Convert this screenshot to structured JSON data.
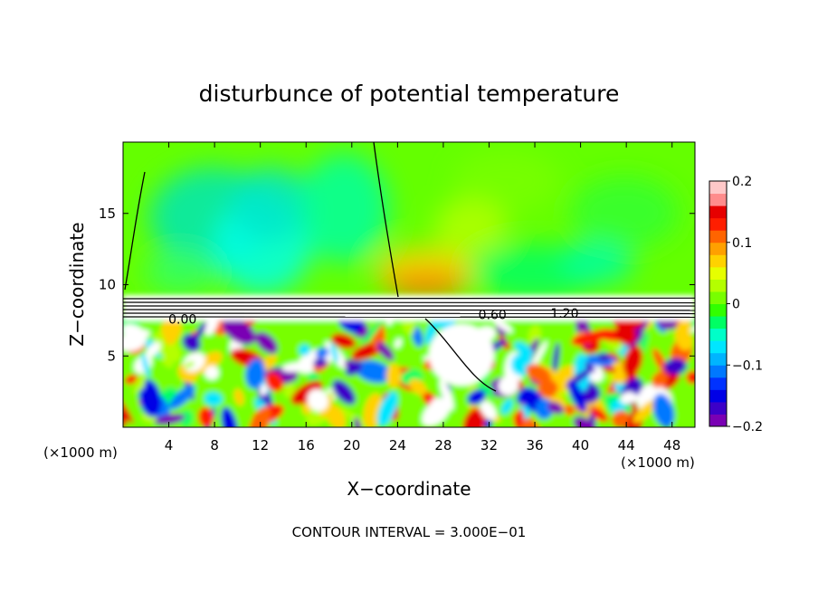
{
  "chart_data": {
    "type": "heatmap",
    "title": "disturbunce of potential temperature",
    "xlabel": "X−coordinate",
    "ylabel": "Z−coordinate",
    "x_unit": "(×1000 m)",
    "x_unit_right": "(×1000 m)",
    "xlim": [
      0,
      50
    ],
    "ylim": [
      0,
      20
    ],
    "x_ticks": [
      4,
      8,
      12,
      16,
      20,
      24,
      28,
      32,
      36,
      40,
      44,
      48
    ],
    "y_ticks": [
      5,
      10,
      15
    ],
    "contour_labels": [
      {
        "text": "0.00",
        "x": 5.2,
        "y": 7.6
      },
      {
        "text": "0.60",
        "x": 32.3,
        "y": 7.9
      },
      {
        "text": "1.20",
        "x": 38.6,
        "y": 8.0
      }
    ],
    "footnote": "CONTOUR INTERVAL = 3.000E−01",
    "colorbar": {
      "min": -0.2,
      "max": 0.2,
      "ticks": [
        "0.2",
        "0.1",
        "0",
        "−0.1",
        "−0.2"
      ],
      "colors": [
        "#7a00b4",
        "#3c00c8",
        "#0000e6",
        "#0032ff",
        "#0078ff",
        "#00b4ff",
        "#00e6ff",
        "#00ffc8",
        "#00ff64",
        "#32ff00",
        "#78ff00",
        "#b4ff00",
        "#e6ff00",
        "#ffd200",
        "#ffa000",
        "#ff6400",
        "#ff1e00",
        "#e60000",
        "#ff8c8c",
        "#ffc8c8"
      ]
    }
  }
}
